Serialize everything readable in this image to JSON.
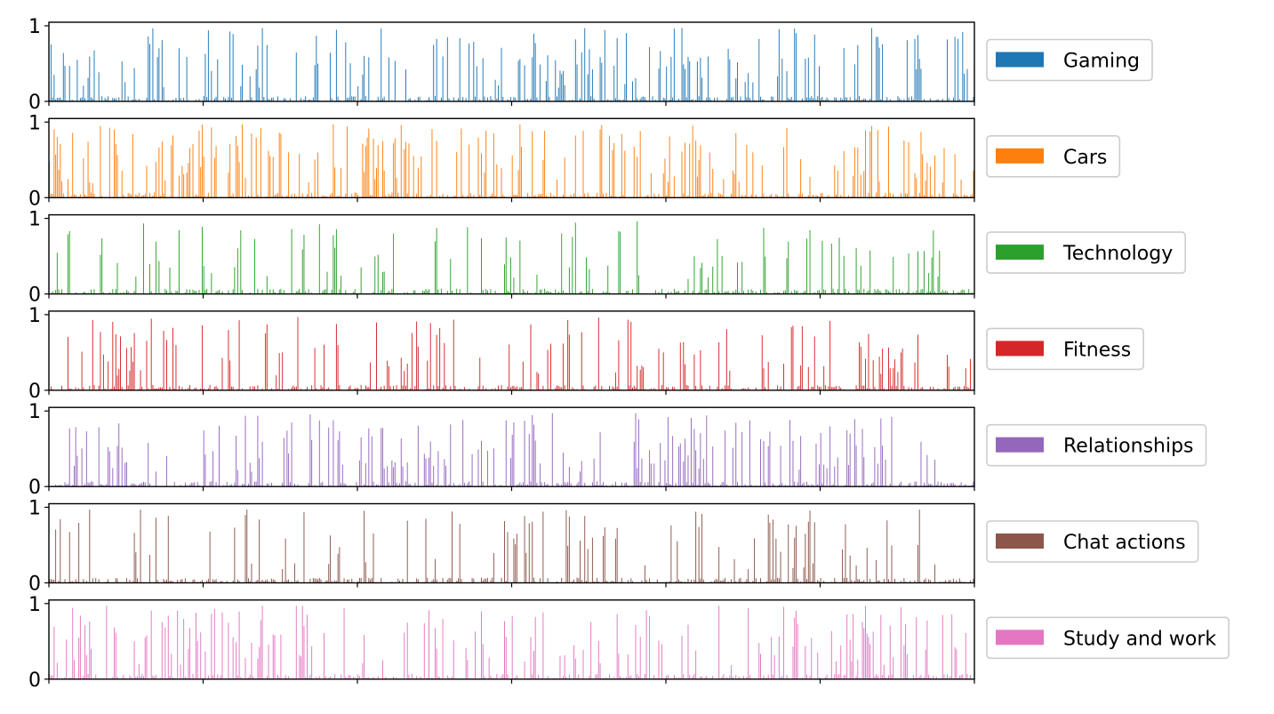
{
  "chart_data": {
    "type": "bar",
    "layout": "stacked-subplots",
    "n_bars": 600,
    "ylim": [
      0,
      1
    ],
    "yticks": [
      "0",
      "1"
    ],
    "x_tick_count": 7,
    "series": [
      {
        "name": "Gaming",
        "color": "#1f77b4",
        "seed": 11,
        "density": 0.22,
        "clusters": [
          0.35,
          0.55
        ],
        "examples": {
          "peak": 0.95,
          "typical_high": 0.6,
          "baseline": 0.03
        }
      },
      {
        "name": "Cars",
        "color": "#ff7f0e",
        "seed": 23,
        "density": 0.26,
        "clusters": [
          0.37,
          0.7
        ],
        "examples": {
          "peak": 0.94,
          "typical_high": 0.6,
          "baseline": 0.03
        }
      },
      {
        "name": "Technology",
        "color": "#2ca02c",
        "seed": 37,
        "density": 0.13,
        "clusters": [
          0.3,
          0.55
        ],
        "examples": {
          "peak": 0.96,
          "typical_high": 0.55,
          "baseline": 0.03
        }
      },
      {
        "name": "Fitness",
        "color": "#d62728",
        "seed": 41,
        "density": 0.18,
        "clusters": [
          0.07,
          0.9
        ],
        "examples": {
          "peak": 0.95,
          "typical_high": 0.6,
          "baseline": 0.03
        }
      },
      {
        "name": "Relationships",
        "color": "#9467bd",
        "seed": 53,
        "density": 0.22,
        "clusters": [
          0.68,
          0.88
        ],
        "examples": {
          "peak": 0.95,
          "typical_high": 0.6,
          "baseline": 0.03
        }
      },
      {
        "name": "Chat actions",
        "color": "#8c564b",
        "seed": 67,
        "density": 0.1,
        "clusters": [
          0.5,
          0.8
        ],
        "examples": {
          "peak": 0.94,
          "typical_high": 0.5,
          "baseline": 0.03
        }
      },
      {
        "name": "Study and work",
        "color": "#e377c2",
        "seed": 79,
        "density": 0.24,
        "clusters": [
          0.15,
          0.88
        ],
        "examples": {
          "peak": 0.97,
          "typical_high": 0.55,
          "baseline": 0.03
        }
      }
    ]
  }
}
